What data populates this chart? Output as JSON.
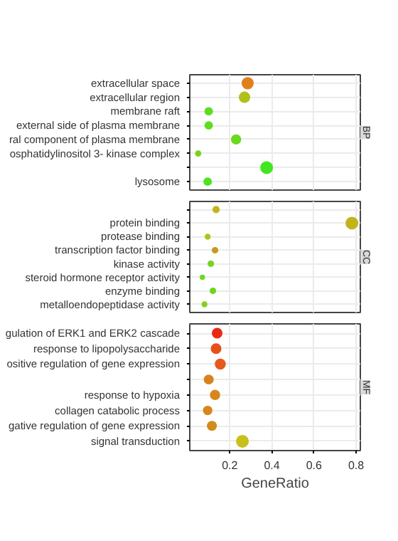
{
  "chart_data": [
    {
      "type": "bubble",
      "title": "BP",
      "orientation": "horizontal",
      "grid": true,
      "tick_labels": "y",
      "xlim": [
        0.01,
        0.82
      ],
      "xticks": [
        0.2,
        0.4,
        0.6,
        0.8
      ],
      "categories": [
        "extracellular space",
        "extracellular region",
        "membrane raft",
        "external side of plasma membrane",
        "ral component of plasma membrane",
        "osphatidylinositol 3- kinase complex",
        null,
        "lysosome"
      ],
      "values": [
        0.285,
        0.27,
        0.1,
        0.1,
        0.23,
        0.05,
        0.375,
        0.095
      ],
      "sizes": [
        0.9,
        0.8,
        0.44,
        0.44,
        0.64,
        0.24,
        1,
        0.44
      ],
      "colors": [
        "#e0801c",
        "#b2c01c",
        "#5edc1e",
        "#5edc1e",
        "#6cd81e",
        "#7ad21e",
        "#3fe81e",
        "#4ee41e"
      ]
    },
    {
      "type": "bubble",
      "title": "CC",
      "orientation": "horizontal",
      "grid": true,
      "tick_labels": "y",
      "xlim": [
        0.01,
        0.82
      ],
      "xticks": [
        0.2,
        0.4,
        0.6,
        0.8
      ],
      "categories": [
        null,
        "protein binding",
        "protease binding",
        "transcription factor binding",
        "kinase activity",
        "steroid hormone receptor activity",
        "enzyme binding",
        "metalloendopeptidase activity"
      ],
      "values": [
        0.135,
        0.78,
        0.095,
        0.13,
        0.11,
        0.07,
        0.12,
        0.08
      ],
      "sizes": [
        0.32,
        1.0,
        0.22,
        0.26,
        0.26,
        0.18,
        0.26,
        0.22
      ],
      "colors": [
        "#c4b41c",
        "#c0b41c",
        "#a6c81c",
        "#c89a1c",
        "#7ad21e",
        "#6cd81e",
        "#6ad81e",
        "#84d01e"
      ]
    },
    {
      "type": "bubble",
      "title": "MF",
      "orientation": "horizontal",
      "grid": true,
      "xlabel": "GeneRatio",
      "xlim": [
        0.01,
        0.82
      ],
      "xticks": [
        0.2,
        0.4,
        0.6,
        0.8
      ],
      "categories": [
        "gulation of ERK1 and ERK2 cascade",
        "response to lipopolysaccharide",
        "ositive regulation of gene expression",
        null,
        "response to hypoxia",
        "collagen catabolic process",
        "gative regulation of gene expression",
        "signal transduction"
      ],
      "values": [
        0.14,
        0.135,
        0.155,
        0.1,
        0.13,
        0.095,
        0.115,
        0.26
      ],
      "sizes": [
        0.7,
        0.7,
        0.75,
        0.6,
        0.65,
        0.55,
        0.6,
        1
      ],
      "colors": [
        "#e82a14",
        "#e8501a",
        "#e8581c",
        "#d8821c",
        "#d8861c",
        "#d8861c",
        "#d08c1c",
        "#c8c01c"
      ]
    }
  ]
}
